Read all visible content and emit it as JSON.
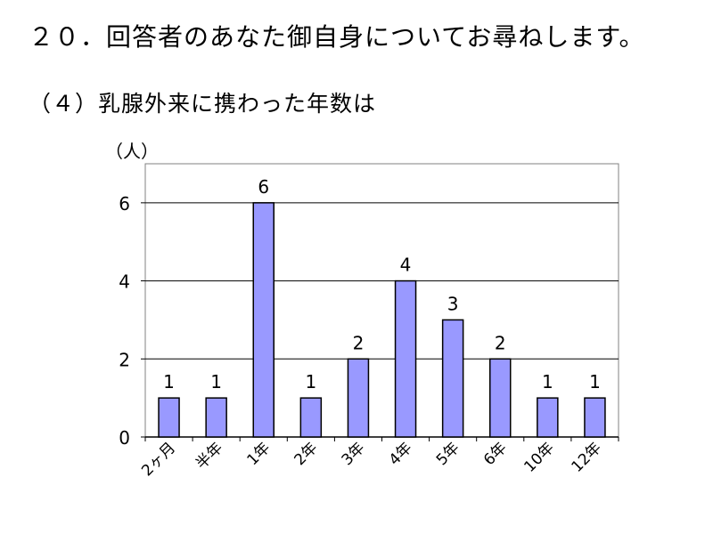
{
  "heading": "２０．回答者のあなた御自身についてお尋ねします。",
  "subheading": "（４）乳腺外来に携わった年数は",
  "colors": {
    "bar_fill": "#9999ff",
    "bar_stroke": "#000000",
    "grid": "#000000"
  },
  "chart_data": {
    "type": "bar",
    "title": "（４）乳腺外来に携わった年数は",
    "xlabel": "",
    "ylabel": "（人）",
    "categories": [
      "2ヶ月",
      "半年",
      "1年",
      "2年",
      "3年",
      "4年",
      "5年",
      "6年",
      "10年",
      "12年"
    ],
    "values": [
      1,
      1,
      6,
      1,
      2,
      4,
      3,
      2,
      1,
      1
    ],
    "ylim": [
      0,
      7
    ],
    "yticks": [
      0,
      2,
      4,
      6
    ],
    "grid": true,
    "data_labels": true,
    "legend": "none"
  }
}
